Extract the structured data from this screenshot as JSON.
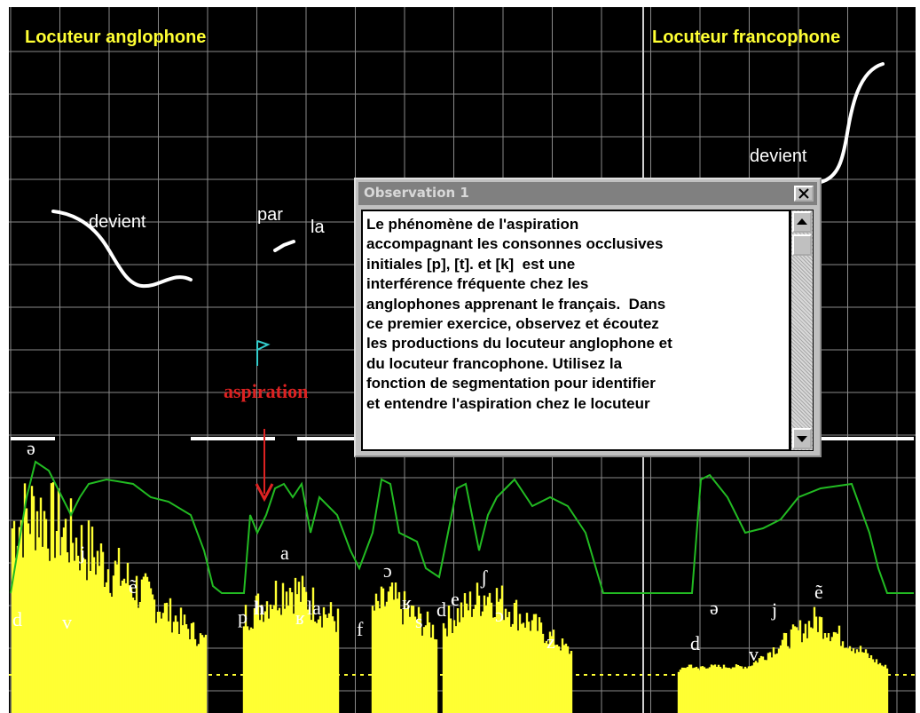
{
  "panels": {
    "left_title": "Locuteur anglophone",
    "right_title": "Locuteur francophone"
  },
  "word_labels": [
    "devient",
    "par",
    "la",
    "devient"
  ],
  "annotation": "aspiration",
  "phonetic_labels": [
    "ə",
    "d",
    "v",
    "j",
    "ẽ",
    "p",
    "h",
    "a",
    "ʁ",
    "la",
    "f",
    "ɔ",
    "ʁ",
    "s",
    "d",
    "e",
    "ʃ",
    "ɔ",
    "z",
    "ə",
    "d",
    "v",
    "j",
    "ẽ"
  ],
  "dialog": {
    "title": "Observation 1",
    "lines": [
      "Le phénomène de l'aspiration",
      "accompagnant les consonnes occlusives",
      "initiales [p], [t]. et [k]  est une",
      "interférence fréquente chez les",
      "anglophones apprenant le français.  Dans",
      "ce premier exercice, observez et écoutez",
      "les productions du locuteur anglophone et",
      "du locuteur francophone. Utilisez la",
      "fonction de segmentation pour identifier",
      "et entendre l'aspiration chez le locuteur"
    ]
  }
}
